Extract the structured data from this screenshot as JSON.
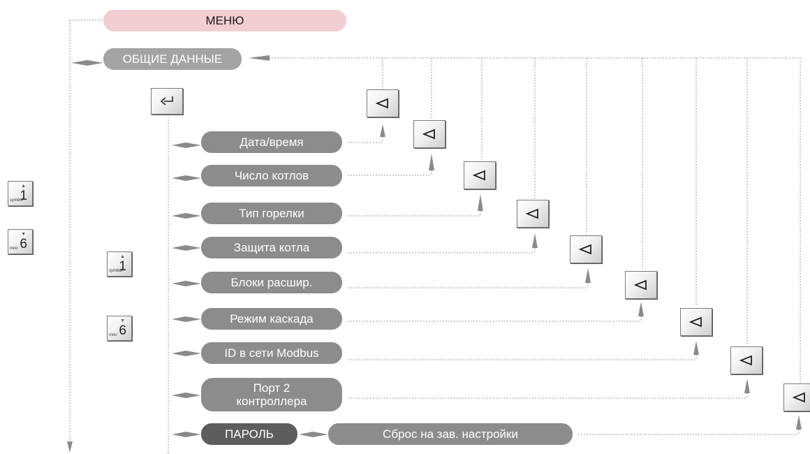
{
  "menu": {
    "label": "МЕНЮ"
  },
  "general": {
    "label": "ОБЩИЕ  ДАННЫЕ"
  },
  "items": [
    {
      "label": "Дата/время"
    },
    {
      "label": "Число  котлов"
    },
    {
      "label": "Тип горелки"
    },
    {
      "label": "Защита котла"
    },
    {
      "label": "Блоки расшир."
    },
    {
      "label": "Режим  каскада"
    },
    {
      "label": "ID  в  сети  Modbus"
    },
    {
      "label": "Порт 2\nконтроллера"
    }
  ],
  "password": {
    "label": "ПАРОЛЬ"
  },
  "reset": {
    "label": "Сброс на зав. настройки"
  },
  "keys": {
    "up": {
      "digit": "1",
      "letters": "symbol",
      "arrow": "▲"
    },
    "down": {
      "digit": "6",
      "letters": "mno",
      "arrow": "▼"
    }
  },
  "colors": {
    "menu_bg": "#f2cdd2",
    "item_bg": "#8c8c8c",
    "password_bg": "#5d5d5d",
    "arrow": "#8a8a8a"
  },
  "icons": {
    "back": "back-triangle-icon",
    "enter": "enter-arrow-icon"
  }
}
